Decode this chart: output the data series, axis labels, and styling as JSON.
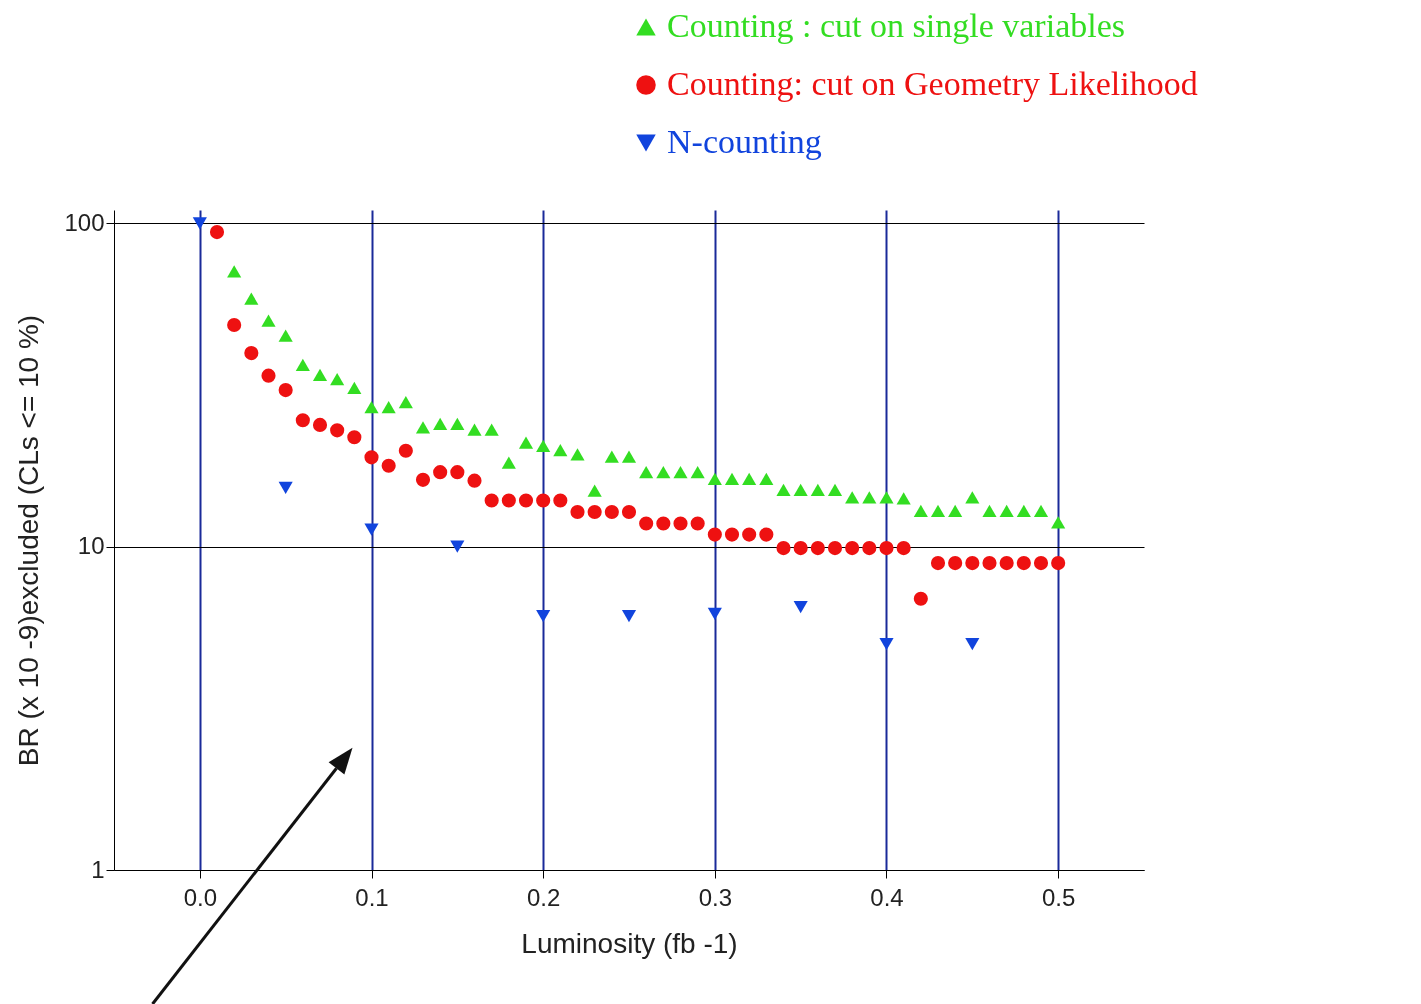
{
  "chart_data": {
    "type": "scatter",
    "xlabel": "Luminosity (fb -1)",
    "ylabel": "BR (x 10 -9)excluded (CLs <= 10 %)",
    "log": "y",
    "grid": true,
    "legend": "top right",
    "xlim": [
      -0.05,
      0.55
    ],
    "xticks": [
      {
        "value": 0,
        "label": "0.0"
      },
      0.1,
      0.2,
      0.3,
      0.4,
      0.5
    ],
    "ylim": [
      1,
      110
    ],
    "yticks": [
      1,
      10,
      100
    ],
    "series": [
      {
        "name": "Counting : cut on single variables",
        "color": "#33dd22",
        "marker": "triangle",
        "x": [
          0.02,
          0.03,
          0.04,
          0.05,
          0.06,
          0.07,
          0.08,
          0.09,
          0.1,
          0.11,
          0.12,
          0.13,
          0.14,
          0.15,
          0.16,
          0.17,
          0.18,
          0.19,
          0.2,
          0.21,
          0.22,
          0.23,
          0.24,
          0.25,
          0.26,
          0.27,
          0.28,
          0.29,
          0.3,
          0.31,
          0.32,
          0.33,
          0.34,
          0.35,
          0.36,
          0.37,
          0.38,
          0.39,
          0.4,
          0.41,
          0.42,
          0.43,
          0.44,
          0.45,
          0.46,
          0.47,
          0.48,
          0.49,
          0.5
        ],
        "values": [
          71,
          58.5,
          50,
          45,
          36.5,
          34,
          33,
          31,
          27,
          27,
          28,
          23.4,
          24,
          24,
          23,
          23,
          18.2,
          21,
          20.5,
          19.9,
          19.3,
          14.9,
          19,
          19,
          17,
          17,
          17,
          17,
          16.2,
          16.2,
          16.2,
          16.2,
          15,
          15,
          15,
          15,
          14.2,
          14.2,
          14.2,
          14.1,
          12.9,
          12.9,
          12.9,
          14.2,
          12.9,
          12.9,
          12.9,
          12.9,
          11.9
        ]
      },
      {
        "name": "Counting: cut on Geometry Likelihood",
        "color": "#ee1111",
        "marker": "circle",
        "x": [
          0.01,
          0.02,
          0.03,
          0.04,
          0.05,
          0.06,
          0.07,
          0.08,
          0.09,
          0.1,
          0.11,
          0.12,
          0.13,
          0.14,
          0.15,
          0.16,
          0.17,
          0.18,
          0.19,
          0.2,
          0.21,
          0.22,
          0.23,
          0.24,
          0.25,
          0.26,
          0.27,
          0.28,
          0.29,
          0.3,
          0.31,
          0.32,
          0.33,
          0.34,
          0.35,
          0.36,
          0.37,
          0.38,
          0.39,
          0.4,
          0.41,
          0.42,
          0.43,
          0.44,
          0.45,
          0.46,
          0.47,
          0.48,
          0.49,
          0.5
        ],
        "values": [
          94,
          48.5,
          39.7,
          33.8,
          30.5,
          24.6,
          23.8,
          22.9,
          21.8,
          18.9,
          17.8,
          19.8,
          16.1,
          17,
          17,
          16,
          13.9,
          13.9,
          13.9,
          13.9,
          13.9,
          12.8,
          12.8,
          12.8,
          12.8,
          11.8,
          11.8,
          11.8,
          11.8,
          10.9,
          10.9,
          10.9,
          10.9,
          9.9,
          9.9,
          9.9,
          9.9,
          9.9,
          9.9,
          9.9,
          9.9,
          6.9,
          8.9,
          8.9,
          8.9,
          8.9,
          8.9,
          8.9,
          8.9,
          8.9
        ]
      },
      {
        "name": "N-counting",
        "color": "#1144dd",
        "marker": "triangle-down",
        "x": [
          0.0,
          0.05,
          0.1,
          0.15,
          0.2,
          0.25,
          0.3,
          0.35,
          0.4,
          0.45
        ],
        "values": [
          100,
          15.2,
          11.3,
          10,
          6.1,
          6.1,
          6.2,
          6.5,
          5,
          5
        ]
      }
    ]
  }
}
